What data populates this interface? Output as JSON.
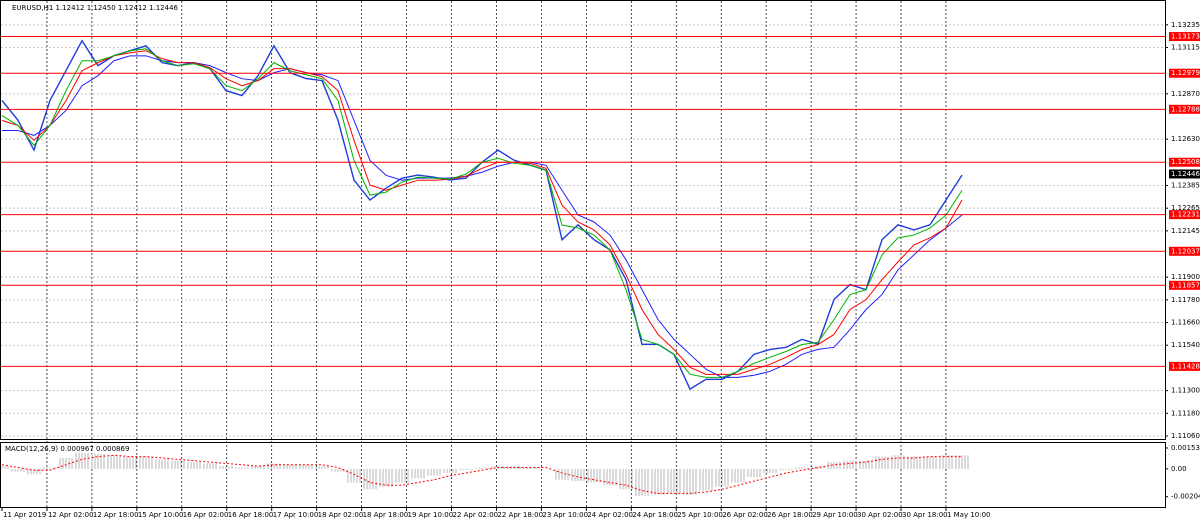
{
  "chart_data": [
    {
      "type": "line",
      "title": "EURUSD,H1  1.12412 1.12450 1.12412 1.12446",
      "ylim": [
        1.11044,
        1.13361
      ],
      "yticks": [
        1.13235,
        1.13115,
        {
          "value": 1.1287,
          "label": "1.12870"
        },
        {
          "value": 1.1263,
          "label": "1.12630"
        },
        1.12385,
        1.12265,
        1.12145,
        {
          "value": 1.119,
          "label": "1.11900"
        },
        {
          "value": 1.1178,
          "label": "1.11780"
        },
        {
          "value": 1.1166,
          "label": "1.11660"
        },
        {
          "value": 1.1154,
          "label": "1.11540"
        },
        {
          "value": 1.113,
          "label": "1.11300"
        },
        {
          "value": 1.1118,
          "label": "1.11180"
        },
        {
          "value": 1.1106,
          "label": "1.11060"
        }
      ],
      "grid": true,
      "time_labels": [
        "11 Apr 2019",
        "12 Apr 02:00",
        "12 Apr 18:00",
        "15 Apr 10:00",
        "16 Apr 02:00",
        "16 Apr 18:00",
        "17 Apr 10:00",
        "18 Apr 02:00",
        "18 Apr 18:00",
        "19 Apr 10:00",
        "22 Apr 02:00",
        "22 Apr 18:00",
        "23 Apr 10:00",
        "24 Apr 02:00",
        "24 Apr 18:00",
        "25 Apr 10:00",
        "26 Apr 02:00",
        "26 Apr 18:00",
        "29 Apr 10:00",
        "30 Apr 02:00",
        "30 Apr 18:00",
        "1 May 10:00"
      ],
      "levels": {
        "color": "#ff0000",
        "values": [
          1.13173,
          1.12979,
          1.12788,
          1.12508,
          1.12231,
          1.12037,
          1.11857,
          1.11428
        ]
      },
      "last_price": 1.12446,
      "series": [
        {
          "color": "#1e3cdc",
          "width": 1.4,
          "values": [
            1.12835,
            1.1273,
            1.12572,
            1.12835,
            1.12993,
            1.13151,
            1.13019,
            1.13072,
            1.13098,
            1.13124,
            1.13035,
            1.13019,
            1.13035,
            1.13003,
            1.12887,
            1.12861,
            1.12966,
            1.13124,
            1.12982,
            1.12951,
            1.1294,
            1.1273,
            1.12414,
            1.12308,
            1.12371,
            1.12424,
            1.1244,
            1.12429,
            1.12414,
            1.12424,
            1.12508,
            1.12572,
            1.12519,
            1.12493,
            1.12466,
            1.12098,
            1.12177,
            1.12098,
            1.12045,
            1.11887,
            1.11545,
            1.11545,
            1.11492,
            1.11308,
            1.1136,
            1.1136,
            1.11402,
            1.11492,
            1.11518,
            1.11529,
            1.11571,
            1.11545,
            1.11782,
            1.11861,
            1.11834,
            1.12098,
            1.12177,
            1.1215,
            1.12177,
            1.12308,
            1.1244
          ]
        },
        {
          "color": "#2020ff",
          "width": 1,
          "values": [
            1.12676,
            1.12676,
            1.1265,
            1.12703,
            1.12782,
            1.12913,
            1.12966,
            1.13045,
            1.13071,
            1.13071,
            1.13045,
            1.13035,
            1.13035,
            1.13019,
            1.12982,
            1.1295,
            1.1294,
            1.12982,
            1.13003,
            1.12982,
            1.12971,
            1.1294,
            1.12729,
            1.12518,
            1.12439,
            1.12413,
            1.12424,
            1.12424,
            1.12424,
            1.12434,
            1.12455,
            1.12487,
            1.12508,
            1.12508,
            1.12492,
            1.1236,
            1.12229,
            1.12192,
            1.12123,
            1.11992,
            1.11834,
            1.11676,
            1.11571,
            1.11492,
            1.11413,
            1.1137,
            1.1137,
            1.11381,
            1.11402,
            1.11439,
            1.11492,
            1.11518,
            1.11529,
            1.11623,
            1.11729,
            1.11808,
            1.11939,
            1.12018,
            1.12097,
            1.1216,
            1.12229
          ]
        },
        {
          "color": "#ff0000",
          "width": 1,
          "values": [
            1.12729,
            1.12703,
            1.12624,
            1.12703,
            1.12834,
            1.12992,
            1.13035,
            1.13071,
            1.13087,
            1.13098,
            1.13056,
            1.13035,
            1.13035,
            1.13008,
            1.1295,
            1.12913,
            1.1294,
            1.13003,
            1.13003,
            1.12982,
            1.12961,
            1.12887,
            1.12624,
            1.12387,
            1.1236,
            1.12387,
            1.12413,
            1.12413,
            1.12418,
            1.12434,
            1.12476,
            1.12508,
            1.12508,
            1.12503,
            1.12476,
            1.12281,
            1.12192,
            1.1215,
            1.12071,
            1.11913,
            1.11729,
            1.11597,
            1.11518,
            1.11423,
            1.11386,
            1.11386,
            1.11386,
            1.11413,
            1.11439,
            1.11476,
            1.11518,
            1.11544,
            1.11597,
            1.11729,
            1.11781,
            1.11887,
            1.11981,
            1.12071,
            1.12108,
            1.1216,
            1.12308
          ]
        },
        {
          "color": "#00b400",
          "width": 1,
          "values": [
            1.12755,
            1.12703,
            1.12597,
            1.12703,
            1.12887,
            1.13045,
            1.13045,
            1.13071,
            1.13098,
            1.13108,
            1.13045,
            1.13019,
            1.13029,
            1.13003,
            1.12913,
            1.12887,
            1.1295,
            1.13035,
            1.12992,
            1.12971,
            1.1295,
            1.12834,
            1.12518,
            1.12334,
            1.1235,
            1.12403,
            1.12429,
            1.12424,
            1.12418,
            1.12445,
            1.12508,
            1.12529,
            1.12503,
            1.12492,
            1.12466,
            1.12176,
            1.1216,
            1.12123,
            1.12044,
            1.11834,
            1.11571,
            1.11544,
            1.11492,
            1.11386,
            1.1137,
            1.1137,
            1.11402,
            1.11444,
            1.11476,
            1.11507,
            1.11544,
            1.11555,
            1.11676,
            1.11808,
            1.11834,
            1.12018,
            1.12108,
            1.12123,
            1.1216,
            1.12229,
            1.1236
          ]
        }
      ]
    },
    {
      "type": "macd",
      "title": "MACD(12,26,9) 0.000967 0.000869",
      "ylim": [
        -0.0028,
        0.0019
      ],
      "yticks": [
        0.001535,
        {
          "value": 0,
          "label": "0.00"
        },
        -0.002041
      ],
      "series": [
        {
          "type": "histogram",
          "color": "#b4b4b4",
          "values": [
            0.0002,
            -0.0002,
            -0.0004,
            0.0001,
            0.0008,
            0.0012,
            0.0011,
            0.001,
            0.0009,
            0.0009,
            0.0007,
            0.0006,
            0.0005,
            0.0004,
            0.0002,
            0.0001,
            0.0002,
            0.0004,
            0.0003,
            0.0003,
            0.0002,
            -0.0002,
            -0.001,
            -0.0015,
            -0.0013,
            -0.001,
            -0.0007,
            -0.0005,
            -0.0003,
            -0.0001,
            0.0001,
            0.0002,
            0.0002,
            0.0001,
            0.0,
            -0.0008,
            -0.0009,
            -0.001,
            -0.0012,
            -0.0015,
            -0.002,
            -0.0019,
            -0.0018,
            -0.0019,
            -0.0016,
            -0.0013,
            -0.001,
            -0.0006,
            -0.0003,
            -0.0001,
            0.0001,
            0.0002,
            0.0005,
            0.0006,
            0.0006,
            0.0009,
            0.001,
            0.0009,
            0.0009,
            0.001,
            0.001
          ]
        },
        {
          "type": "dotted-line",
          "color": "#ff0000",
          "values": [
            0.0003,
            0.0001,
            -0.0001,
            -0.0001,
            0.0003,
            0.0007,
            0.0009,
            0.001,
            0.0009,
            0.0009,
            0.0008,
            0.0007,
            0.0006,
            0.0005,
            0.0004,
            0.0003,
            0.0002,
            0.0003,
            0.0003,
            0.0003,
            0.0003,
            0.0001,
            -0.0004,
            -0.001,
            -0.0012,
            -0.0012,
            -0.001,
            -0.0008,
            -0.0005,
            -0.0003,
            -0.0001,
            0.0001,
            0.0001,
            0.0001,
            0.0001,
            -0.0003,
            -0.0006,
            -0.0008,
            -0.001,
            -0.0012,
            -0.0016,
            -0.0018,
            -0.0018,
            -0.0018,
            -0.0017,
            -0.0015,
            -0.0012,
            -0.0009,
            -0.0006,
            -0.0003,
            -0.0001,
            0.0001,
            0.0003,
            0.0004,
            0.0005,
            0.0007,
            0.0008,
            0.0008,
            0.0009,
            0.0009,
            0.0009
          ]
        }
      ]
    }
  ]
}
